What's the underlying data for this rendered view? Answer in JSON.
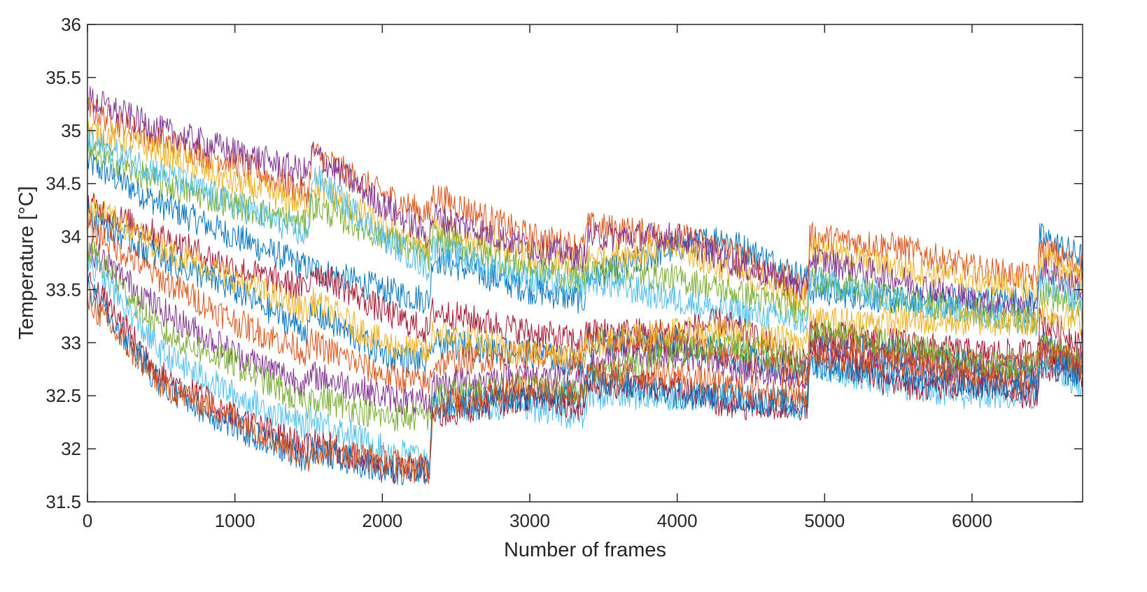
{
  "chart_data": {
    "type": "line",
    "title": "",
    "xlabel": "Number of frames",
    "ylabel": "Temperature [°C]",
    "xlim": [
      0,
      6750
    ],
    "ylim": [
      31.5,
      36
    ],
    "xticks": [
      0,
      1000,
      2000,
      3000,
      4000,
      5000,
      6000
    ],
    "xtick_labels": [
      "0",
      "1000",
      "2000",
      "3000",
      "4000",
      "5000",
      "6000"
    ],
    "yticks": [
      31.5,
      32,
      32.5,
      33,
      33.5,
      34,
      34.5,
      35,
      35.5,
      36
    ],
    "ytick_labels": [
      "31.5",
      "32",
      "32.5",
      "33",
      "33.5",
      "34",
      "34.5",
      "35",
      "35.5",
      "36"
    ],
    "grid": false,
    "legend": "none",
    "series_colors": [
      "#0072BD",
      "#D95319",
      "#EDB120",
      "#7E2F8E",
      "#77AC30",
      "#4DBEEE",
      "#A2142F"
    ],
    "x": [
      0,
      500,
      1000,
      1500,
      1520,
      2000,
      2320,
      2340,
      3000,
      3370,
      3390,
      4000,
      4300,
      4880,
      4900,
      5500,
      6000,
      6440,
      6460,
      6750
    ],
    "series": [
      {
        "values": [
          34.7,
          34.3,
          34.0,
          33.7,
          33.7,
          33.5,
          33.4,
          33.8,
          33.5,
          33.4,
          33.6,
          33.9,
          34.0,
          33.6,
          33.5,
          33.4,
          33.4,
          33.4,
          34.0,
          33.8
        ]
      },
      {
        "values": [
          35.2,
          34.9,
          34.7,
          34.4,
          34.8,
          34.4,
          34.2,
          34.4,
          34.0,
          33.9,
          34.1,
          34.0,
          33.9,
          33.5,
          34.0,
          33.9,
          33.7,
          33.6,
          33.9,
          33.7
        ]
      },
      {
        "values": [
          35.0,
          34.8,
          34.5,
          34.3,
          34.5,
          34.1,
          33.9,
          34.1,
          33.8,
          33.7,
          33.8,
          33.9,
          33.7,
          33.4,
          33.9,
          33.7,
          33.6,
          33.5,
          33.8,
          33.6
        ]
      },
      {
        "values": [
          35.3,
          35.0,
          34.8,
          34.6,
          34.8,
          34.3,
          34.0,
          34.2,
          33.9,
          33.8,
          34.0,
          34.0,
          33.8,
          33.5,
          33.8,
          33.6,
          33.4,
          33.3,
          33.7,
          33.5
        ]
      },
      {
        "values": [
          34.8,
          34.5,
          34.3,
          34.1,
          34.3,
          34.0,
          33.8,
          34.0,
          33.7,
          33.6,
          33.7,
          33.6,
          33.5,
          33.3,
          33.6,
          33.4,
          33.3,
          33.2,
          33.5,
          33.3
        ]
      },
      {
        "values": [
          34.9,
          34.6,
          34.3,
          34.0,
          34.6,
          34.0,
          33.7,
          33.9,
          33.6,
          33.5,
          33.6,
          33.4,
          33.3,
          33.2,
          33.6,
          33.4,
          33.3,
          33.2,
          33.6,
          33.4
        ]
      },
      {
        "values": [
          34.3,
          34.0,
          33.7,
          33.5,
          33.7,
          33.3,
          33.1,
          33.3,
          33.1,
          33.0,
          33.1,
          33.1,
          33.2,
          32.8,
          33.1,
          33.0,
          32.9,
          32.9,
          33.2,
          33.0
        ]
      },
      {
        "values": [
          34.2,
          33.8,
          33.5,
          33.1,
          33.3,
          32.9,
          32.8,
          33.0,
          32.9,
          32.8,
          33.0,
          33.0,
          32.9,
          32.7,
          33.0,
          32.9,
          32.8,
          32.7,
          33.0,
          32.8
        ]
      },
      {
        "values": [
          34.1,
          33.6,
          33.2,
          32.9,
          33.0,
          32.7,
          32.6,
          32.8,
          32.9,
          32.8,
          33.0,
          33.0,
          32.9,
          32.7,
          33.0,
          32.9,
          32.8,
          32.8,
          33.0,
          32.8
        ]
      },
      {
        "values": [
          34.3,
          33.9,
          33.6,
          33.3,
          33.4,
          33.0,
          32.9,
          33.1,
          32.9,
          32.9,
          33.0,
          33.1,
          33.1,
          33.0,
          33.2,
          33.2,
          33.2,
          33.2,
          33.3,
          33.2
        ]
      },
      {
        "values": [
          33.9,
          33.3,
          32.9,
          32.6,
          32.7,
          32.5,
          32.4,
          32.6,
          32.7,
          32.6,
          32.8,
          32.9,
          32.8,
          32.6,
          33.0,
          32.8,
          32.7,
          32.7,
          32.9,
          32.8
        ]
      },
      {
        "values": [
          33.9,
          33.1,
          32.8,
          32.4,
          32.5,
          32.3,
          32.3,
          32.5,
          32.6,
          32.5,
          32.7,
          32.9,
          33.0,
          32.8,
          33.1,
          33.0,
          32.8,
          32.8,
          33.0,
          32.8
        ]
      },
      {
        "values": [
          33.8,
          32.9,
          32.5,
          32.2,
          32.3,
          32.0,
          31.9,
          32.4,
          32.4,
          32.3,
          32.5,
          32.5,
          32.5,
          32.4,
          32.8,
          32.6,
          32.5,
          32.5,
          32.8,
          32.6
        ]
      },
      {
        "values": [
          33.6,
          32.7,
          32.3,
          32.0,
          32.1,
          31.8,
          31.8,
          32.3,
          32.5,
          32.4,
          32.6,
          32.6,
          32.4,
          32.4,
          32.9,
          32.6,
          32.6,
          32.5,
          32.8,
          32.7
        ]
      },
      {
        "values": [
          33.5,
          32.6,
          32.2,
          31.9,
          32.0,
          31.8,
          31.8,
          32.4,
          32.5,
          32.5,
          32.7,
          32.5,
          32.5,
          32.4,
          32.8,
          32.7,
          32.6,
          32.6,
          32.8,
          32.7
        ]
      },
      {
        "values": [
          33.4,
          32.6,
          32.3,
          31.9,
          32.0,
          31.9,
          31.8,
          32.4,
          32.6,
          32.5,
          32.7,
          32.7,
          32.6,
          32.5,
          32.9,
          32.8,
          32.7,
          32.6,
          32.9,
          32.8
        ]
      }
    ]
  }
}
